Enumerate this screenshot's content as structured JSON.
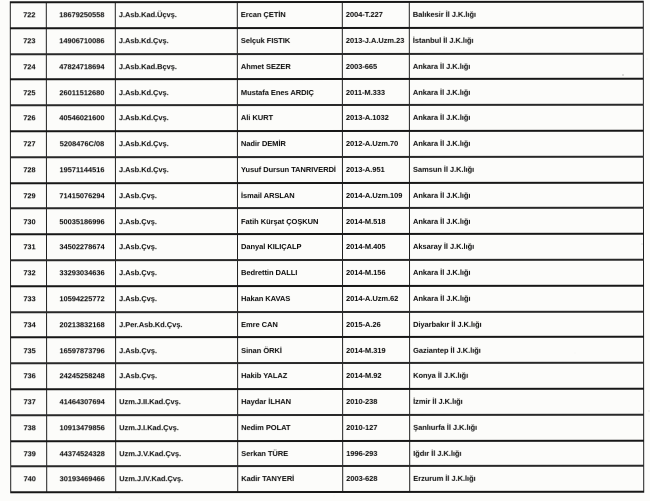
{
  "document": {
    "type": "scanned-personnel-list-table",
    "colors": {
      "paper": "#fcfcfa",
      "ink": "#0f0f0f",
      "rule": "#242424"
    },
    "table": {
      "column_keys": [
        "sira",
        "id",
        "rank",
        "name",
        "decision",
        "location"
      ],
      "rows": [
        {
          "sira": "722",
          "id": "18679250558",
          "rank": "J.Asb.Kad.Üçvş.",
          "name": "Ercan ÇETİN",
          "decision": "2004-T.227",
          "location": "Balıkesir İl J.K.lığı"
        },
        {
          "sira": "723",
          "id": "14906710086",
          "rank": "J.Asb.Kd.Çvş.",
          "name": "Selçuk FISTIK",
          "decision": "2013-J.A.Uzm.23",
          "location": "İstanbul İl J.K.lığı"
        },
        {
          "sira": "724",
          "id": "47824718694",
          "rank": "J.Asb.Kad.Bçvş.",
          "name": "Ahmet SEZER",
          "decision": "2003-665",
          "location": "Ankara İl J.K.lığı"
        },
        {
          "sira": "725",
          "id": "26011512680",
          "rank": "J.Asb.Kd.Çvş.",
          "name": "Mustafa Enes ARDIÇ",
          "decision": "2011-M.333",
          "location": "Ankara İl J.K.lığı"
        },
        {
          "sira": "726",
          "id": "40546021600",
          "rank": "J.Asb.Kd.Çvş.",
          "name": "Ali KURT",
          "decision": "2013-A.1032",
          "location": "Ankara İl J.K.lığı"
        },
        {
          "sira": "727",
          "id": "5208476C/08",
          "rank": "J.Asb.Kd.Çvş.",
          "name": "Nadir DEMİR",
          "decision": "2012-A.Uzm.70",
          "location": "Ankara İl J.K.lığı"
        },
        {
          "sira": "728",
          "id": "19571144516",
          "rank": "J.Asb.Kd.Çvş.",
          "name": "Yusuf Dursun TANRIVERDİ",
          "decision": "2013-A.951",
          "location": "Samsun İl J.K.lığı"
        },
        {
          "sira": "729",
          "id": "71415076294",
          "rank": "J.Asb.Çvş.",
          "name": "İsmail ARSLAN",
          "decision": "2014-A.Uzm.109",
          "location": "Ankara İl J.K.lığı"
        },
        {
          "sira": "730",
          "id": "50035186996",
          "rank": "J.Asb.Çvş.",
          "name": "Fatih Kürşat ÇOŞKUN",
          "decision": "2014-M.518",
          "location": "Ankara İl J.K.lığı"
        },
        {
          "sira": "731",
          "id": "34502278674",
          "rank": "J.Asb.Çvş.",
          "name": "Danyal KILIÇALP",
          "decision": "2014-M.405",
          "location": "Aksaray İl J.K.lığı"
        },
        {
          "sira": "732",
          "id": "33293034636",
          "rank": "J.Asb.Çvş.",
          "name": "Bedrettin DALLI",
          "decision": "2014-M.156",
          "location": "Ankara İl J.K.lığı"
        },
        {
          "sira": "733",
          "id": "10594225772",
          "rank": "J.Asb.Çvş.",
          "name": "Hakan KAVAS",
          "decision": "2014-A.Uzm.62",
          "location": "Ankara İl J.K.lığı"
        },
        {
          "sira": "734",
          "id": "20213832168",
          "rank": "J.Per.Asb.Kd.Çvş.",
          "name": "Emre CAN",
          "decision": "2015-A.26",
          "location": "Diyarbakır İl J.K.lığı"
        },
        {
          "sira": "735",
          "id": "16597873796",
          "rank": "J.Asb.Çvş.",
          "name": "Sinan ÖRKİ",
          "decision": "2014-M.319",
          "location": "Gaziantep İl J.K.lığı"
        },
        {
          "sira": "736",
          "id": "24245258248",
          "rank": "J.Asb.Çvş.",
          "name": "Hakib YALAZ",
          "decision": "2014-M.92",
          "location": "Konya İl J.K.lığı"
        },
        {
          "sira": "737",
          "id": "41464307694",
          "rank": "Uzm.J.II.Kad.Çvş.",
          "name": "Haydar İLHAN",
          "decision": "2010-238",
          "location": "İzmir İl J.K.lığı"
        },
        {
          "sira": "738",
          "id": "10913479856",
          "rank": "Uzm.J.I.Kad.Çvş.",
          "name": "Nedim POLAT",
          "decision": "2010-127",
          "location": "Şanlıurfa İl J.K.lığı"
        },
        {
          "sira": "739",
          "id": "44374524328",
          "rank": "Uzm.J.V.Kad.Çvş.",
          "name": "Serkan TÜRE",
          "decision": "1996-293",
          "location": "Iğdır İl J.K.lığı"
        },
        {
          "sira": "740",
          "id": "30193469466",
          "rank": "Uzm.J.IV.Kad.Çvş.",
          "name": "Kadir TANYERİ",
          "decision": "2003-628",
          "location": "Erzurum İl J.K.lığı"
        }
      ]
    }
  }
}
